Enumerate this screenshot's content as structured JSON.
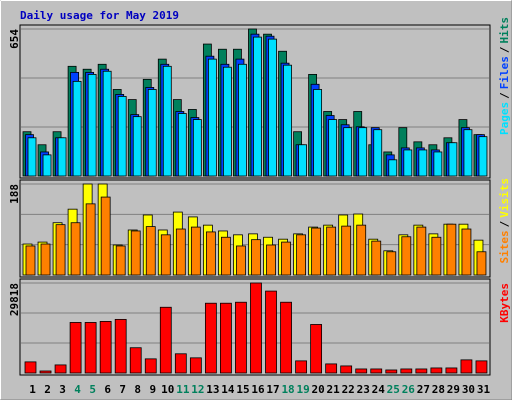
{
  "chart_data": [
    {
      "type": "bar",
      "title": "Daily usage for May 2019",
      "legend_separator": "/",
      "ylim": [
        0,
        654
      ],
      "yticks": [
        {
          "value": 218,
          "label": null
        },
        {
          "value": 436,
          "label": null
        },
        654
      ],
      "grid": true,
      "series": [
        {
          "name": "Hits",
          "color": "#00805c",
          "values": [
            197,
            139,
            197,
            488,
            475,
            497,
            385,
            340,
            430,
            520,
            340,
            296,
            587,
            564,
            564,
            654,
            631,
            555,
            197,
            452,
            287,
            251,
            287,
            139,
            107,
            215,
            152,
            139,
            170,
            251,
            184
          ]
        },
        {
          "name": "Files",
          "color": "#0040ff",
          "values": [
            184,
            107,
            170,
            461,
            461,
            475,
            363,
            273,
            394,
            497,
            287,
            260,
            533,
            497,
            520,
            631,
            622,
            502,
            139,
            408,
            269,
            228,
            219,
            215,
            94,
            125,
            125,
            116,
            148,
            215,
            184
          ]
        },
        {
          "name": "Pages",
          "color": "#00e0ff",
          "values": [
            170,
            94,
            170,
            421,
            452,
            466,
            354,
            264,
            385,
            488,
            278,
            251,
            520,
            484,
            497,
            618,
            609,
            493,
            139,
            385,
            251,
            215,
            215,
            206,
            72,
            116,
            116,
            107,
            148,
            206,
            175
          ]
        }
      ]
    },
    {
      "type": "bar",
      "legend_separator": "/",
      "ylim": [
        0,
        188
      ],
      "yticks": [
        {
          "value": 62.67,
          "label": null
        },
        {
          "value": 125.33,
          "label": null
        },
        188
      ],
      "grid": true,
      "series": [
        {
          "name": "Visits",
          "color": "#ffff00",
          "values": [
            64,
            68,
            108,
            136,
            188,
            188,
            62,
            93,
            124,
            93,
            130,
            120,
            103,
            91,
            83,
            85,
            78,
            74,
            85,
            99,
            103,
            124,
            126,
            74,
            50,
            83,
            103,
            85,
            105,
            105,
            72
          ]
        },
        {
          "name": "Sites",
          "color": "#ff8000",
          "values": [
            60,
            64,
            104,
            108,
            147,
            161,
            60,
            91,
            100,
            83,
            95,
            99,
            89,
            78,
            60,
            73,
            62,
            68,
            83,
            97,
            99,
            101,
            103,
            70,
            48,
            79,
            99,
            78,
            105,
            95,
            48
          ]
        }
      ]
    },
    {
      "type": "bar",
      "ylim": [
        0,
        29818
      ],
      "yticks": [
        {
          "value": 9939.33,
          "label": null
        },
        {
          "value": 19878.67,
          "label": null
        },
        29818
      ],
      "grid": true,
      "categories": [
        "1",
        "2",
        "3",
        "4",
        "5",
        "6",
        "7",
        "8",
        "9",
        "10",
        "11",
        "12",
        "13",
        "14",
        "15",
        "16",
        "17",
        "18",
        "19",
        "20",
        "21",
        "22",
        "23",
        "24",
        "25",
        "26",
        "27",
        "28",
        "29",
        "30",
        "31"
      ],
      "category_colors": [
        "#000000",
        "#000000",
        "#000000",
        "#00805c",
        "#00805c",
        "#000000",
        "#000000",
        "#000000",
        "#000000",
        "#000000",
        "#00805c",
        "#00805c",
        "#000000",
        "#000000",
        "#000000",
        "#000000",
        "#000000",
        "#00805c",
        "#00805c",
        "#000000",
        "#000000",
        "#000000",
        "#000000",
        "#000000",
        "#00805c",
        "#00805c",
        "#000000",
        "#000000",
        "#000000",
        "#000000",
        "#000000"
      ],
      "series": [
        {
          "name": "KBytes",
          "color": "#ff0000",
          "values": [
            3685,
            670,
            2680,
            16750,
            16750,
            17090,
            17760,
            8376,
            4690,
            21780,
            6366,
            5026,
            23120,
            23120,
            23450,
            29818,
            27140,
            23450,
            4020,
            16080,
            3015,
            2345,
            1340,
            1340,
            1005,
            1340,
            1340,
            1675,
            1675,
            4355,
            4020
          ]
        }
      ]
    }
  ]
}
